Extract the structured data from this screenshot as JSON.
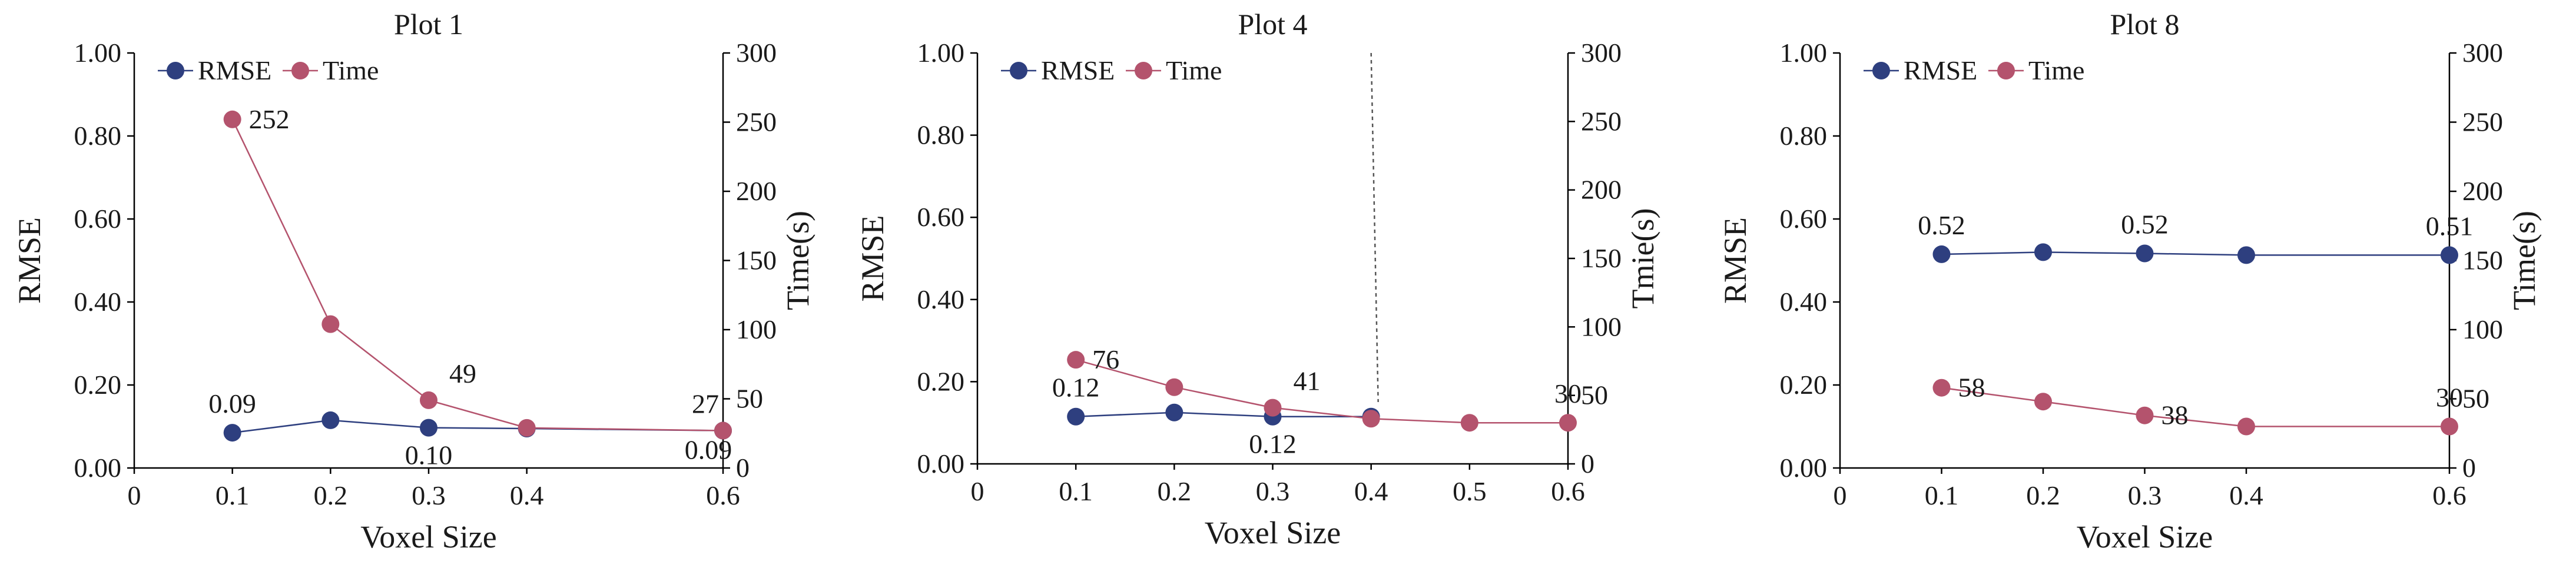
{
  "figure": {
    "description_free": true
  },
  "colors": {
    "rmse": "#2e3f7f",
    "time": "#b4536d",
    "dashed": "#555555"
  },
  "chart_data": [
    {
      "type": "line",
      "title": "Plot 1",
      "xlabel": "Voxel Size",
      "ylabel": "RMSE",
      "y2label": "Time(s)",
      "xlim": [
        0,
        0.6
      ],
      "x_ticks": [
        "0",
        "0.1",
        "0.2",
        "0.3",
        "0.4",
        "0.6"
      ],
      "x_tick_values": [
        0,
        0.1,
        0.2,
        0.3,
        0.4,
        0.6
      ],
      "ylim": [
        0,
        1
      ],
      "y_ticks": [
        "0.00",
        "0.20",
        "0.40",
        "0.60",
        "0.80",
        "1.00"
      ],
      "y2lim": [
        0,
        300
      ],
      "y2_ticks": [
        "0",
        "50",
        "100",
        "150",
        "200",
        "250",
        "300"
      ],
      "legend": [
        "RMSE",
        "Time"
      ],
      "legend_position": "top-left",
      "series": [
        {
          "name": "RMSE",
          "axis": "left",
          "x": [
            0.1,
            0.2,
            0.3,
            0.4,
            0.6
          ],
          "values": [
            0.085,
            0.115,
            0.097,
            0.095,
            0.09
          ],
          "labels": [
            {
              "index": 0,
              "text": "0.09",
              "anchor": "above"
            },
            {
              "index": 2,
              "text": "0.10",
              "anchor": "below"
            },
            {
              "index": 4,
              "text": "0.09",
              "anchor": "below-left"
            }
          ]
        },
        {
          "name": "Time",
          "axis": "right",
          "x": [
            0.1,
            0.2,
            0.3,
            0.4,
            0.6
          ],
          "values": [
            252,
            104,
            49,
            29,
            27
          ],
          "labels": [
            {
              "index": 0,
              "text": "252",
              "anchor": "right"
            },
            {
              "index": 2,
              "text": "49",
              "anchor": "above-right"
            },
            {
              "index": 4,
              "text": "27",
              "anchor": "above-left"
            }
          ]
        }
      ]
    },
    {
      "type": "line",
      "title": "Plot 4",
      "xlabel": "Voxel Size",
      "ylabel": "RMSE",
      "y2label": "Tmie(s)",
      "xlim": [
        0,
        0.6
      ],
      "x_ticks": [
        "0",
        "0.1",
        "0.2",
        "0.3",
        "0.4",
        "0.5",
        "0.6"
      ],
      "x_tick_values": [
        0,
        0.1,
        0.2,
        0.3,
        0.4,
        0.5,
        0.6
      ],
      "ylim": [
        0,
        1
      ],
      "y_ticks": [
        "0.00",
        "0.20",
        "0.40",
        "0.60",
        "0.80",
        "1.00"
      ],
      "y2lim": [
        0,
        300
      ],
      "y2_ticks": [
        "0",
        "50",
        "100",
        "150",
        "200",
        "250",
        "300"
      ],
      "legend": [
        "RMSE",
        "Time"
      ],
      "legend_position": "top-left",
      "reference_line": {
        "x": 0.4,
        "style": "dashed"
      },
      "series": [
        {
          "name": "RMSE",
          "axis": "left",
          "x": [
            0.1,
            0.2,
            0.3,
            0.4
          ],
          "values": [
            0.115,
            0.125,
            0.115,
            0.115
          ],
          "labels": [
            {
              "index": 0,
              "text": "0.12",
              "anchor": "above"
            },
            {
              "index": 2,
              "text": "0.12",
              "anchor": "below"
            }
          ]
        },
        {
          "name": "Time",
          "axis": "right",
          "x": [
            0.1,
            0.2,
            0.3,
            0.4,
            0.5,
            0.6
          ],
          "values": [
            76,
            56,
            41,
            33,
            30,
            30
          ],
          "labels": [
            {
              "index": 0,
              "text": "76",
              "anchor": "right"
            },
            {
              "index": 2,
              "text": "41",
              "anchor": "above-right"
            },
            {
              "index": 5,
              "text": "30",
              "anchor": "above"
            }
          ]
        }
      ]
    },
    {
      "type": "line",
      "title": "Plot 8",
      "xlabel": "Voxel Size",
      "ylabel": "RMSE",
      "y2label": "Time(s)",
      "xlim": [
        0,
        0.6
      ],
      "x_ticks": [
        "0",
        "0.1",
        "0.2",
        "0.3",
        "0.4",
        "0.6"
      ],
      "x_tick_values": [
        0,
        0.1,
        0.2,
        0.3,
        0.4,
        0.6
      ],
      "ylim": [
        0,
        1
      ],
      "y_ticks": [
        "0.00",
        "0.20",
        "0.40",
        "0.60",
        "0.80",
        "1.00"
      ],
      "y2lim": [
        0,
        300
      ],
      "y2_ticks": [
        "0",
        "50",
        "100",
        "150",
        "200",
        "250",
        "300"
      ],
      "legend": [
        "RMSE",
        "Time"
      ],
      "legend_position": "top-left",
      "series": [
        {
          "name": "RMSE",
          "axis": "left",
          "x": [
            0.1,
            0.2,
            0.3,
            0.4,
            0.6
          ],
          "values": [
            0.515,
            0.52,
            0.517,
            0.513,
            0.513
          ],
          "labels": [
            {
              "index": 0,
              "text": "0.52",
              "anchor": "above"
            },
            {
              "index": 2,
              "text": "0.52",
              "anchor": "above"
            },
            {
              "index": 4,
              "text": "0.51",
              "anchor": "above"
            }
          ]
        },
        {
          "name": "Time",
          "axis": "right",
          "x": [
            0.1,
            0.2,
            0.3,
            0.4,
            0.6
          ],
          "values": [
            58,
            48,
            38,
            30,
            30
          ],
          "labels": [
            {
              "index": 0,
              "text": "58",
              "anchor": "right"
            },
            {
              "index": 2,
              "text": "38",
              "anchor": "right"
            },
            {
              "index": 4,
              "text": "30",
              "anchor": "above"
            }
          ]
        }
      ]
    }
  ]
}
